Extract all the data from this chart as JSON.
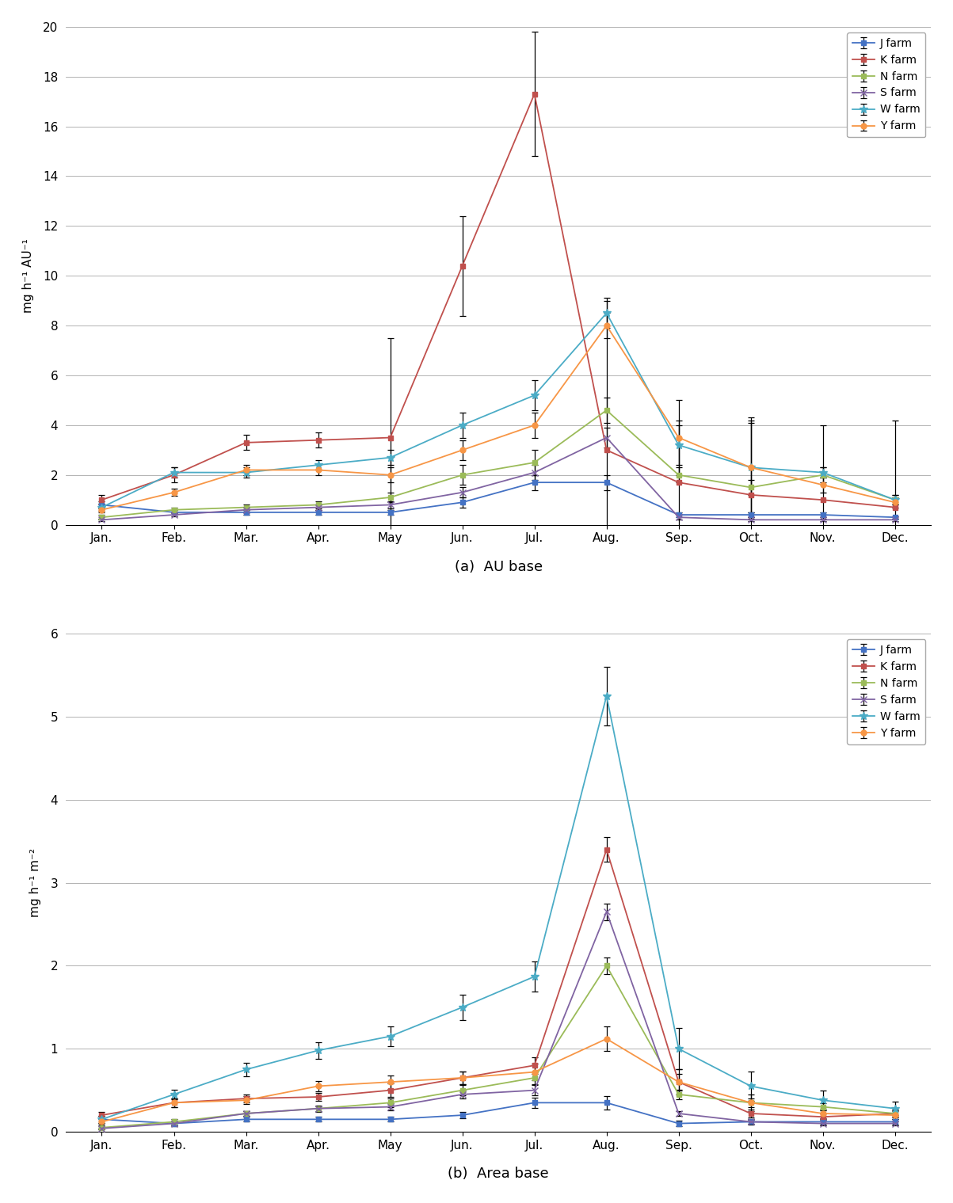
{
  "months": [
    "Jan.",
    "Feb.",
    "Mar.",
    "Apr.",
    "May",
    "Jun.",
    "Jul.",
    "Aug.",
    "Sep.",
    "Oct.",
    "Nov.",
    "Dec."
  ],
  "farms": [
    "J farm",
    "K farm",
    "N farm",
    "S farm",
    "W farm",
    "Y farm"
  ],
  "colors": [
    "#4472C4",
    "#C0504D",
    "#9BBB59",
    "#8064A2",
    "#4BACC6",
    "#F79646"
  ],
  "au_data": {
    "J farm": [
      0.8,
      0.5,
      0.5,
      0.5,
      0.5,
      0.9,
      1.7,
      1.7,
      0.4,
      0.4,
      0.4,
      0.3
    ],
    "K farm": [
      1.0,
      2.0,
      3.3,
      3.4,
      3.5,
      10.4,
      17.3,
      3.0,
      1.7,
      1.2,
      1.0,
      0.7
    ],
    "N farm": [
      0.3,
      0.6,
      0.7,
      0.8,
      1.1,
      2.0,
      2.5,
      4.6,
      2.0,
      1.5,
      2.0,
      1.0
    ],
    "S farm": [
      0.2,
      0.4,
      0.6,
      0.7,
      0.8,
      1.3,
      2.1,
      3.5,
      0.3,
      0.2,
      0.2,
      0.2
    ],
    "W farm": [
      0.7,
      2.1,
      2.1,
      2.4,
      2.7,
      4.0,
      5.2,
      8.5,
      3.2,
      2.3,
      2.1,
      1.0
    ],
    "Y farm": [
      0.6,
      1.3,
      2.2,
      2.2,
      2.0,
      3.0,
      4.0,
      8.0,
      3.5,
      2.3,
      1.6,
      0.9
    ]
  },
  "au_err": {
    "J farm": [
      0.15,
      0.1,
      0.1,
      0.1,
      0.1,
      0.2,
      0.3,
      0.3,
      0.1,
      0.1,
      0.1,
      0.05
    ],
    "K farm": [
      0.2,
      0.3,
      0.3,
      0.3,
      4.0,
      2.0,
      2.5,
      6.0,
      2.5,
      3.0,
      3.0,
      3.5
    ],
    "N farm": [
      0.1,
      0.1,
      0.1,
      0.15,
      0.2,
      0.4,
      0.5,
      0.5,
      0.3,
      0.3,
      0.3,
      0.2
    ],
    "S farm": [
      0.05,
      0.05,
      0.1,
      0.1,
      0.15,
      0.2,
      0.3,
      0.4,
      0.1,
      0.05,
      0.05,
      0.04
    ],
    "W farm": [
      0.15,
      0.2,
      0.2,
      0.2,
      0.3,
      0.5,
      0.6,
      0.6,
      0.8,
      1.8,
      0.2,
      0.2
    ],
    "Y farm": [
      0.1,
      0.15,
      0.2,
      0.2,
      0.3,
      0.4,
      0.5,
      0.5,
      1.5,
      2.0,
      0.3,
      0.2
    ]
  },
  "area_data": {
    "J farm": [
      0.15,
      0.1,
      0.15,
      0.15,
      0.15,
      0.2,
      0.35,
      0.35,
      0.1,
      0.12,
      0.12,
      0.12
    ],
    "K farm": [
      0.2,
      0.35,
      0.4,
      0.42,
      0.5,
      0.65,
      0.8,
      3.4,
      0.6,
      0.22,
      0.18,
      0.22
    ],
    "N farm": [
      0.05,
      0.12,
      0.22,
      0.28,
      0.35,
      0.5,
      0.65,
      2.0,
      0.45,
      0.35,
      0.3,
      0.22
    ],
    "S farm": [
      0.04,
      0.1,
      0.22,
      0.28,
      0.3,
      0.45,
      0.5,
      2.65,
      0.22,
      0.12,
      0.1,
      0.1
    ],
    "W farm": [
      0.15,
      0.45,
      0.75,
      0.98,
      1.15,
      1.5,
      1.87,
      5.25,
      1.0,
      0.55,
      0.38,
      0.28
    ],
    "Y farm": [
      0.12,
      0.35,
      0.38,
      0.55,
      0.6,
      0.65,
      0.72,
      1.12,
      0.6,
      0.35,
      0.22,
      0.2
    ]
  },
  "area_err": {
    "J farm": [
      0.04,
      0.03,
      0.03,
      0.03,
      0.03,
      0.04,
      0.06,
      0.08,
      0.03,
      0.03,
      0.03,
      0.03
    ],
    "K farm": [
      0.04,
      0.05,
      0.05,
      0.05,
      0.08,
      0.08,
      0.1,
      0.15,
      0.1,
      0.05,
      0.04,
      0.05
    ],
    "N farm": [
      0.02,
      0.03,
      0.03,
      0.04,
      0.05,
      0.06,
      0.08,
      0.1,
      0.06,
      0.05,
      0.04,
      0.04
    ],
    "S farm": [
      0.01,
      0.02,
      0.03,
      0.03,
      0.04,
      0.05,
      0.06,
      0.1,
      0.03,
      0.02,
      0.02,
      0.02
    ],
    "W farm": [
      0.04,
      0.06,
      0.08,
      0.1,
      0.12,
      0.15,
      0.18,
      0.35,
      0.25,
      0.18,
      0.12,
      0.08
    ],
    "Y farm": [
      0.03,
      0.05,
      0.05,
      0.06,
      0.08,
      0.08,
      0.1,
      0.15,
      0.15,
      0.1,
      0.06,
      0.05
    ]
  },
  "subtitle_a": "(a)  AU base",
  "subtitle_b": "(b)  Area base",
  "ylabel_a": "mg h⁻¹ AU⁻¹",
  "ylabel_b": "mg h⁻¹ m⁻²",
  "ylim_a": [
    0,
    20
  ],
  "ylim_b": [
    0,
    6
  ],
  "yticks_a": [
    0,
    2,
    4,
    6,
    8,
    10,
    12,
    14,
    16,
    18,
    20
  ],
  "yticks_b": [
    0,
    1,
    2,
    3,
    4,
    5,
    6
  ]
}
